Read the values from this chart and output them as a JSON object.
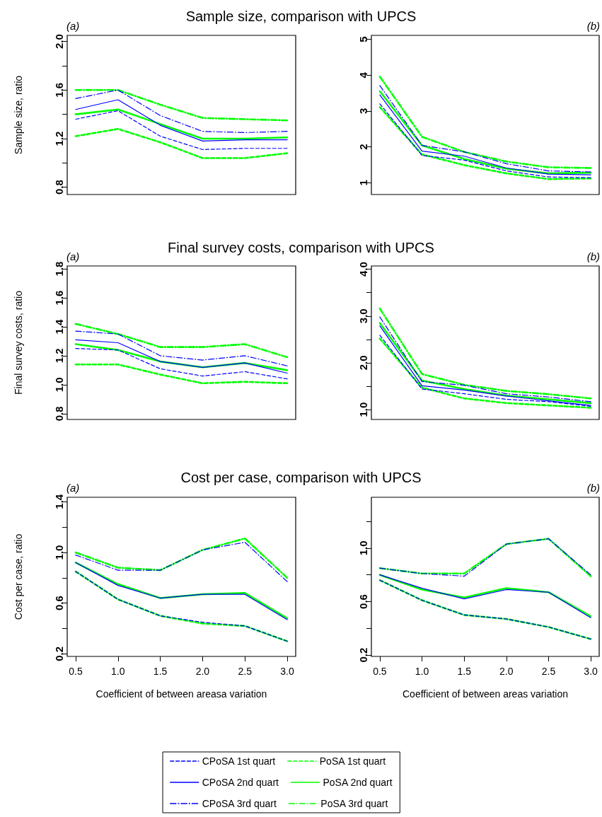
{
  "chart_data": [
    {
      "type": "line",
      "title": "Sample size, comparison with UPCS",
      "subtitle": "(a)",
      "ylabel": "Sample size, ratio",
      "x": [
        0.5,
        1.0,
        1.5,
        2.0,
        2.5,
        3.0
      ],
      "xlim": [
        0.4,
        3.1
      ],
      "ylim": [
        0.74,
        2.05
      ],
      "yticks": [
        0.8,
        {
          "value": 1.0,
          "label": null
        },
        1.2,
        {
          "value": 1.4,
          "label": null
        },
        1.6,
        {
          "value": 1.8,
          "label": null
        },
        {
          "value": 2.0,
          "label": "2.0"
        }
      ],
      "tick_labels": "y",
      "marker": "none",
      "legend": "bottom",
      "series": [
        {
          "name": "CPoSA 1st quart",
          "color": "#0000ff",
          "line_style": "dashed",
          "values": [
            1.36,
            1.43,
            1.22,
            1.11,
            1.12,
            1.12
          ]
        },
        {
          "name": "PoSA 1st quart",
          "color": "#00ff00",
          "line_style": "dashed",
          "values": [
            1.22,
            1.28,
            1.17,
            1.04,
            1.04,
            1.08
          ]
        },
        {
          "name": "CPoSA 2nd quart",
          "color": "#0000ff",
          "line_style": "solid",
          "values": [
            1.44,
            1.52,
            1.31,
            1.18,
            1.19,
            1.19
          ]
        },
        {
          "name": "PoSA 2nd quart",
          "color": "#00ff00",
          "line_style": "solid",
          "values": [
            1.4,
            1.44,
            1.32,
            1.2,
            1.2,
            1.21
          ]
        },
        {
          "name": "CPoSA 3rd quart",
          "color": "#0000ff",
          "line_style": "dashdot",
          "values": [
            1.53,
            1.6,
            1.39,
            1.26,
            1.25,
            1.26
          ]
        },
        {
          "name": "PoSA 3rd quart",
          "color": "#00ff00",
          "line_style": "dashdot",
          "values": [
            1.6,
            1.6,
            1.48,
            1.37,
            1.36,
            1.35
          ]
        }
      ]
    },
    {
      "type": "line",
      "subtitle": "(b)",
      "x": [
        0.5,
        1.0,
        1.5,
        2.0,
        2.5,
        3.0
      ],
      "xlim": [
        0.4,
        3.1
      ],
      "ylim": [
        0.67,
        5.11
      ],
      "yticks": [
        1,
        2,
        3,
        4,
        5
      ],
      "tick_labels": "y",
      "marker": "none",
      "legend": "bottom",
      "series": [
        {
          "name": "CPoSA 1st quart",
          "color": "#0000ff",
          "line_style": "dashed",
          "values": [
            3.2,
            1.76,
            1.63,
            1.33,
            1.16,
            1.14
          ]
        },
        {
          "name": "PoSA 1st quart",
          "color": "#00ff00",
          "line_style": "dashed",
          "values": [
            3.11,
            1.79,
            1.49,
            1.26,
            1.1,
            1.12
          ]
        },
        {
          "name": "CPoSA 2nd quart",
          "color": "#0000ff",
          "line_style": "solid",
          "values": [
            3.45,
            1.88,
            1.74,
            1.41,
            1.24,
            1.22
          ]
        },
        {
          "name": "PoSA 2nd quart",
          "color": "#00ff00",
          "line_style": "solid",
          "values": [
            3.55,
            2.04,
            1.66,
            1.39,
            1.26,
            1.28
          ]
        },
        {
          "name": "CPoSA 3rd quart",
          "color": "#0000ff",
          "line_style": "dashdot",
          "values": [
            3.71,
            2.04,
            1.86,
            1.53,
            1.33,
            1.3
          ]
        },
        {
          "name": "PoSA 3rd quart",
          "color": "#00ff00",
          "line_style": "dashdot",
          "values": [
            3.96,
            2.28,
            1.86,
            1.59,
            1.43,
            1.41
          ]
        }
      ]
    },
    {
      "type": "line",
      "title": "Final survey costs, comparison with UPCS",
      "subtitle": "(a)",
      "ylabel": "Final survey costs, ratio",
      "x": [
        0.5,
        1.0,
        1.5,
        2.0,
        2.5,
        3.0
      ],
      "xlim": [
        0.4,
        3.1
      ],
      "ylim": [
        0.76,
        1.82
      ],
      "yticks": [
        0.8,
        {
          "value": 1.0,
          "label": "1.0"
        },
        1.2,
        1.4,
        1.6,
        1.8
      ],
      "tick_labels": "y",
      "marker": "none",
      "legend": "bottom",
      "series": [
        {
          "name": "CPoSA 1st quart",
          "color": "#0000ff",
          "line_style": "dashed",
          "values": [
            1.25,
            1.24,
            1.11,
            1.06,
            1.09,
            1.04
          ]
        },
        {
          "name": "PoSA 1st quart",
          "color": "#00ff00",
          "line_style": "dashed",
          "values": [
            1.14,
            1.14,
            1.07,
            1.01,
            1.02,
            1.01
          ]
        },
        {
          "name": "CPoSA 2nd quart",
          "color": "#0000ff",
          "line_style": "solid",
          "values": [
            1.31,
            1.29,
            1.16,
            1.12,
            1.15,
            1.08
          ]
        },
        {
          "name": "PoSA 2nd quart",
          "color": "#00ff00",
          "line_style": "solid",
          "values": [
            1.28,
            1.24,
            1.16,
            1.12,
            1.15,
            1.1
          ]
        },
        {
          "name": "CPoSA 3rd quart",
          "color": "#0000ff",
          "line_style": "dashdot",
          "values": [
            1.37,
            1.35,
            1.2,
            1.17,
            1.2,
            1.13
          ]
        },
        {
          "name": "PoSA 3rd quart",
          "color": "#00ff00",
          "line_style": "dashdot",
          "values": [
            1.42,
            1.35,
            1.26,
            1.26,
            1.28,
            1.19
          ]
        }
      ]
    },
    {
      "type": "line",
      "subtitle": "(b)",
      "x": [
        0.5,
        1.0,
        1.5,
        2.0,
        2.5,
        3.0
      ],
      "xlim": [
        0.4,
        3.1
      ],
      "ylim": [
        0.79,
        4.07
      ],
      "yticks": [
        {
          "value": 1.0,
          "label": "1.0"
        },
        {
          "value": 1.5,
          "label": null
        },
        {
          "value": 2.0,
          "label": "2.0"
        },
        {
          "value": 2.5,
          "label": null
        },
        {
          "value": 3.0,
          "label": "3.0"
        },
        {
          "value": 3.5,
          "label": null
        },
        {
          "value": 4.0,
          "label": "4.0"
        }
      ],
      "tick_labels": "y",
      "marker": "none",
      "legend": "bottom",
      "series": [
        {
          "name": "CPoSA 1st quart",
          "color": "#0000ff",
          "line_style": "dashed",
          "values": [
            2.59,
            1.44,
            1.34,
            1.22,
            1.17,
            1.07
          ]
        },
        {
          "name": "PoSA 1st quart",
          "color": "#00ff00",
          "line_style": "dashed",
          "values": [
            2.52,
            1.47,
            1.24,
            1.14,
            1.09,
            1.04
          ]
        },
        {
          "name": "CPoSA 2nd quart",
          "color": "#0000ff",
          "line_style": "solid",
          "values": [
            2.79,
            1.51,
            1.42,
            1.29,
            1.19,
            1.09
          ]
        },
        {
          "name": "PoSA 2nd quart",
          "color": "#00ff00",
          "line_style": "solid",
          "values": [
            2.85,
            1.62,
            1.44,
            1.3,
            1.22,
            1.14
          ]
        },
        {
          "name": "CPoSA 3rd quart",
          "color": "#0000ff",
          "line_style": "dashdot",
          "values": [
            2.98,
            1.6,
            1.52,
            1.34,
            1.27,
            1.17
          ]
        },
        {
          "name": "PoSA 3rd quart",
          "color": "#00ff00",
          "line_style": "dashdot",
          "values": [
            3.16,
            1.76,
            1.53,
            1.4,
            1.33,
            1.24
          ]
        }
      ]
    },
    {
      "type": "line",
      "title": "Cost per case, comparison with UPCS",
      "subtitle": "(a)",
      "ylabel": "Cost per case, ratio",
      "xlabel": "Coefficient of between areasa variation",
      "x": [
        0.5,
        1.0,
        1.5,
        2.0,
        2.5,
        3.0
      ],
      "xlim": [
        0.4,
        3.1
      ],
      "xticks": [
        0.5,
        {
          "value": 1.0,
          "label": "1.0"
        },
        1.5,
        {
          "value": 2.0,
          "label": "2.0"
        },
        2.5,
        {
          "value": 3.0,
          "label": "3.0"
        }
      ],
      "ylim": [
        0.18,
        1.435
      ],
      "yticks": [
        0.2,
        {
          "value": 0.4,
          "label": null
        },
        0.6,
        {
          "value": 0.8,
          "label": null
        },
        {
          "value": 1.0,
          "label": "1.0"
        },
        {
          "value": 1.2,
          "label": null
        },
        1.4
      ],
      "marker": "none",
      "legend": "bottom",
      "series": [
        {
          "name": "CPoSA 1st quart",
          "color": "#0000ff",
          "line_style": "dashed",
          "values": [
            0.85,
            0.63,
            0.5,
            0.45,
            0.42,
            0.3
          ]
        },
        {
          "name": "PoSA 1st quart",
          "color": "#00ff00",
          "line_style": "dashed",
          "values": [
            0.85,
            0.63,
            0.5,
            0.44,
            0.42,
            0.3
          ]
        },
        {
          "name": "CPoSA 2nd quart",
          "color": "#0000ff",
          "line_style": "solid",
          "values": [
            0.92,
            0.74,
            0.64,
            0.67,
            0.67,
            0.47
          ]
        },
        {
          "name": "PoSA 2nd quart",
          "color": "#00ff00",
          "line_style": "solid",
          "values": [
            0.92,
            0.75,
            0.64,
            0.67,
            0.68,
            0.48
          ]
        },
        {
          "name": "CPoSA 3rd quart",
          "color": "#0000ff",
          "line_style": "dashdot",
          "values": [
            0.98,
            0.86,
            0.86,
            1.02,
            1.08,
            0.77
          ]
        },
        {
          "name": "PoSA 3rd quart",
          "color": "#00ff00",
          "line_style": "dashdot",
          "values": [
            1.0,
            0.88,
            0.86,
            1.02,
            1.11,
            0.8
          ]
        }
      ]
    },
    {
      "type": "line",
      "subtitle": "(b)",
      "xlabel": "Coefficient of between areas variation",
      "x": [
        0.5,
        1.0,
        1.5,
        2.0,
        2.5,
        3.0
      ],
      "xlim": [
        0.4,
        3.1
      ],
      "xticks": [
        0.5,
        {
          "value": 1.0,
          "label": "1.0"
        },
        1.5,
        {
          "value": 2.0,
          "label": "2.0"
        },
        2.5,
        {
          "value": 3.0,
          "label": "3.0"
        }
      ],
      "ylim": [
        0.19,
        1.38
      ],
      "yticks": [
        0.2,
        {
          "value": 0.4,
          "label": null
        },
        0.6,
        {
          "value": 0.8,
          "label": null
        },
        {
          "value": 1.0,
          "label": "1.0"
        },
        {
          "value": 1.2,
          "label": null
        }
      ],
      "marker": "none",
      "legend": "bottom",
      "series": [
        {
          "name": "CPoSA 1st quart",
          "color": "#0000ff",
          "line_style": "dashed",
          "values": [
            0.76,
            0.61,
            0.5,
            0.47,
            0.41,
            0.32
          ]
        },
        {
          "name": "PoSA 1st quart",
          "color": "#00ff00",
          "line_style": "dashed",
          "values": [
            0.76,
            0.61,
            0.5,
            0.47,
            0.41,
            0.32
          ]
        },
        {
          "name": "CPoSA 2nd quart",
          "color": "#0000ff",
          "line_style": "solid",
          "values": [
            0.8,
            0.7,
            0.62,
            0.69,
            0.67,
            0.48
          ]
        },
        {
          "name": "PoSA 2nd quart",
          "color": "#00ff00",
          "line_style": "solid",
          "values": [
            0.8,
            0.69,
            0.63,
            0.7,
            0.67,
            0.49
          ]
        },
        {
          "name": "CPoSA 3rd quart",
          "color": "#0000ff",
          "line_style": "dashdot",
          "values": [
            0.85,
            0.81,
            0.79,
            1.03,
            1.07,
            0.8
          ]
        },
        {
          "name": "PoSA 3rd quart",
          "color": "#00ff00",
          "line_style": "dashdot",
          "values": [
            0.85,
            0.81,
            0.81,
            1.03,
            1.07,
            0.79
          ]
        }
      ]
    }
  ]
}
